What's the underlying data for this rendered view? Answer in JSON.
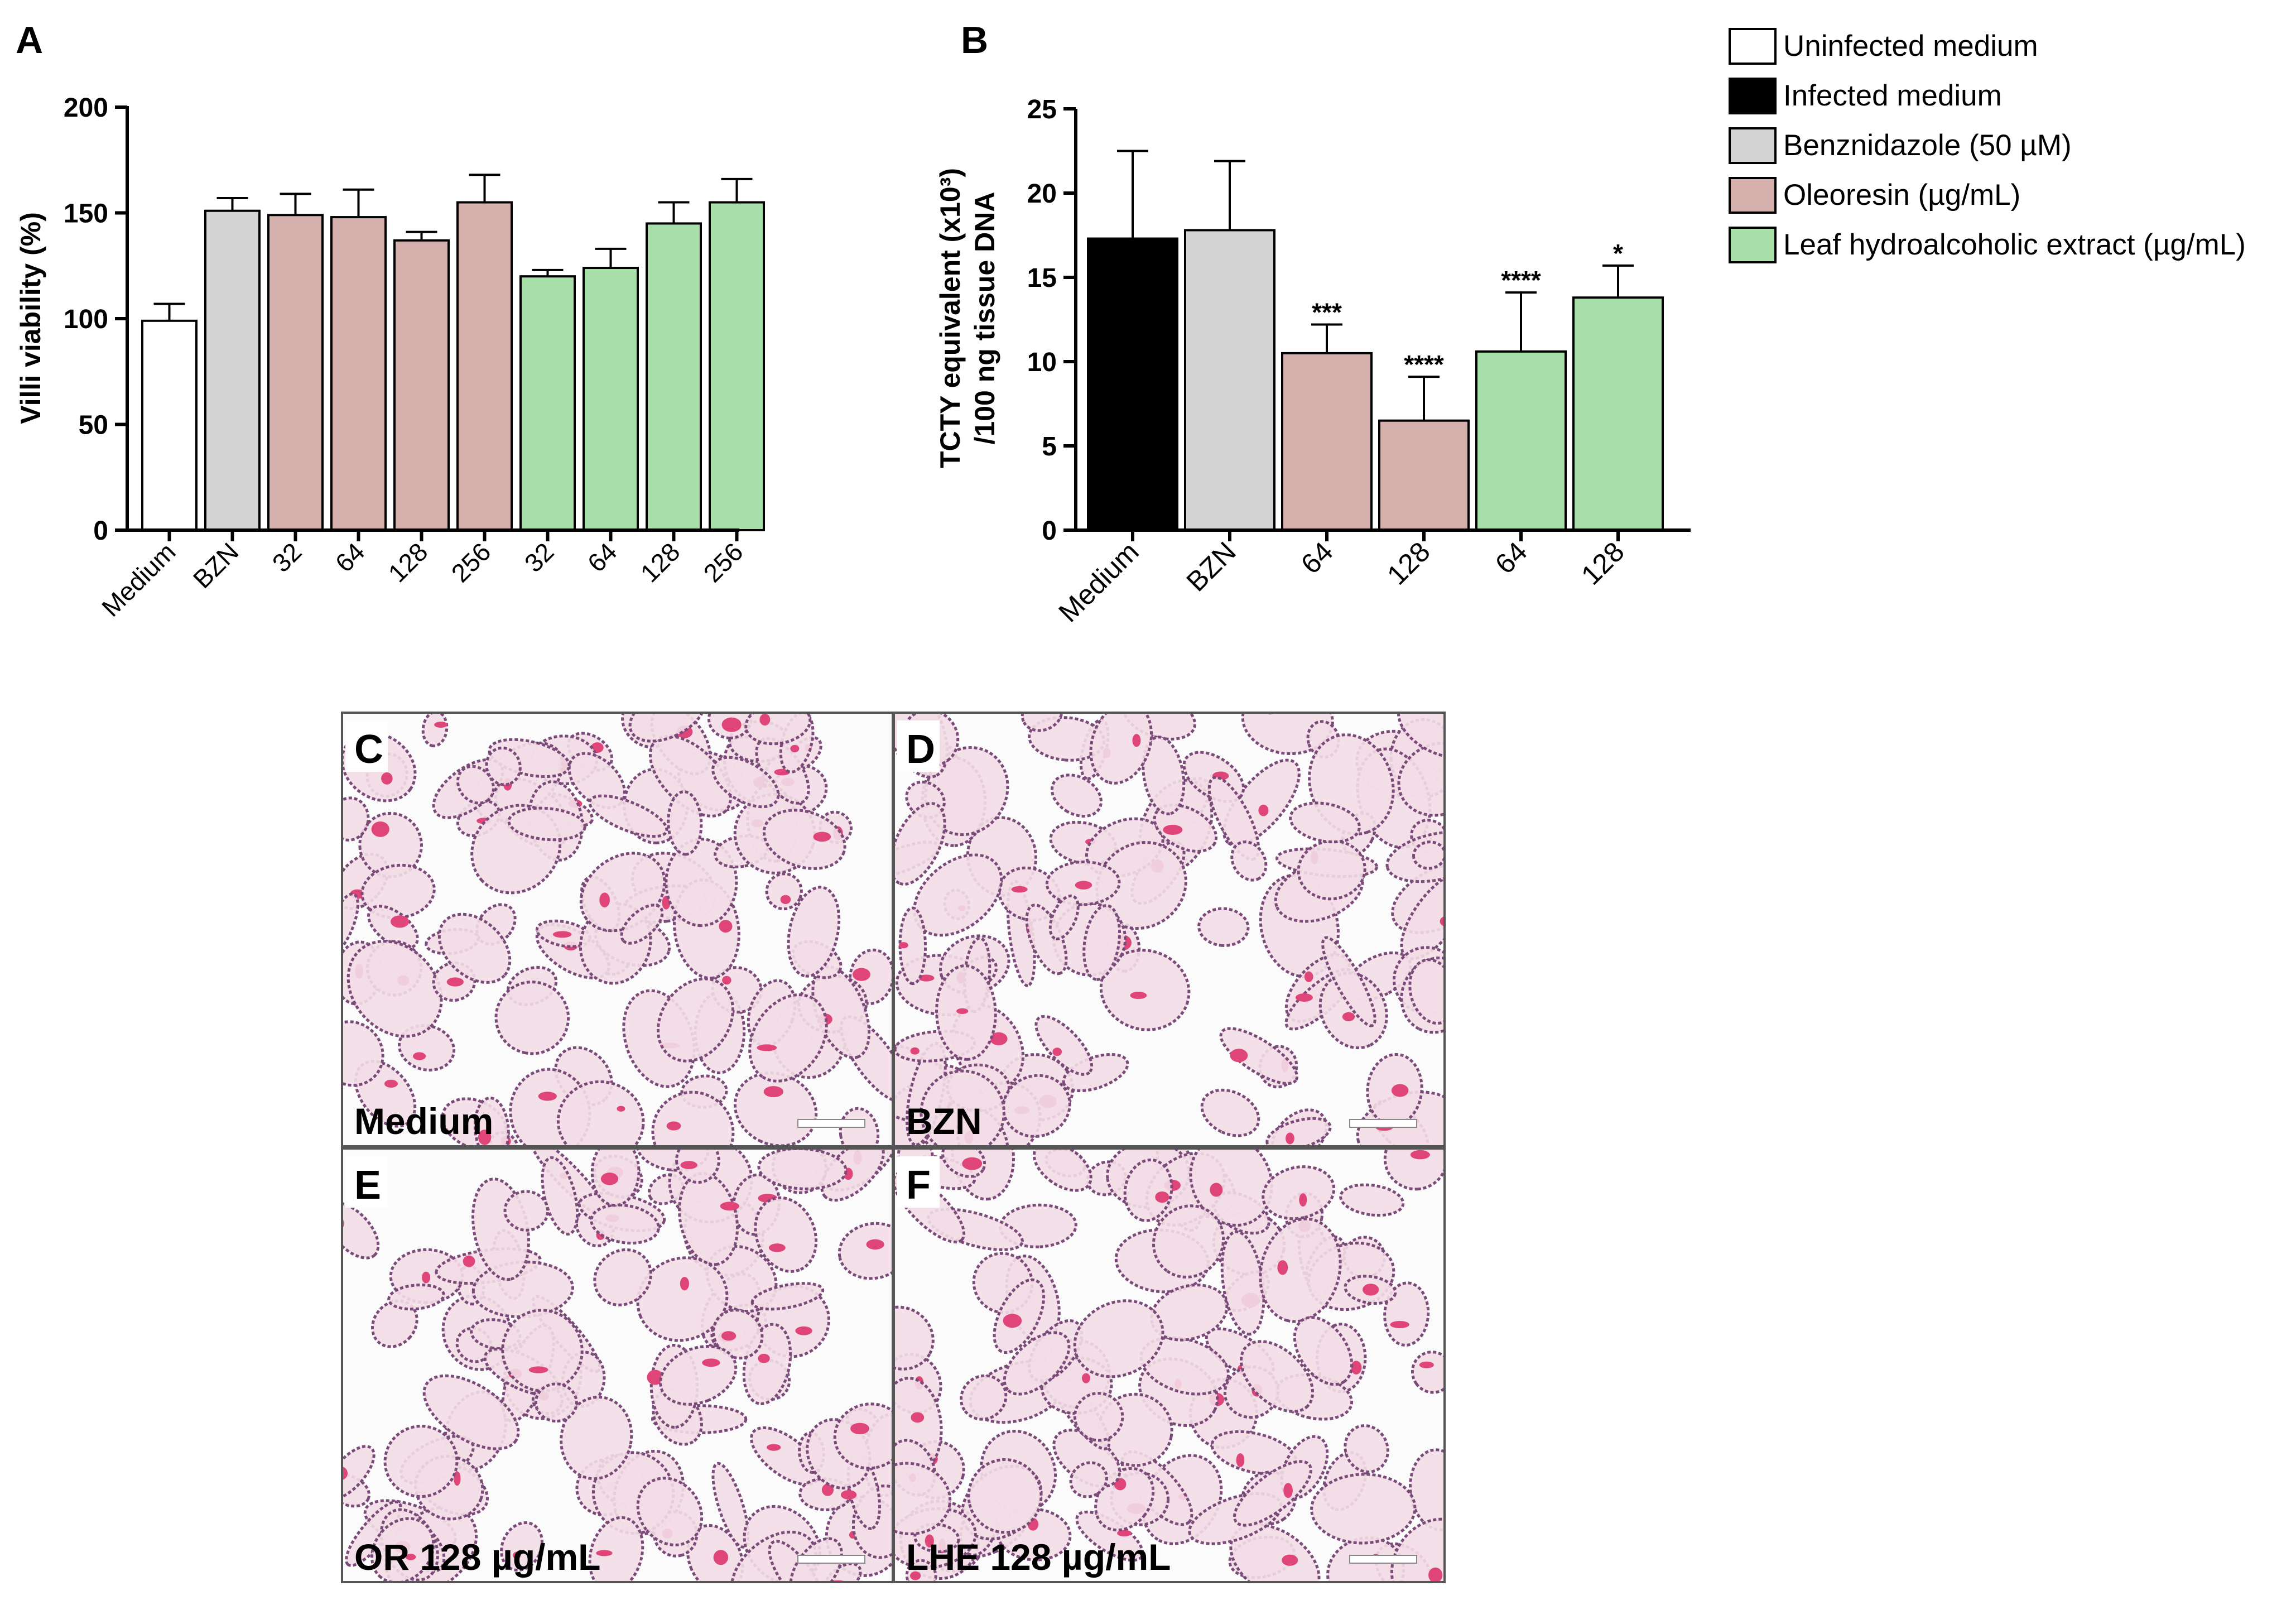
{
  "panel_labels": {
    "a": "A",
    "b": "B"
  },
  "legend": [
    {
      "label": "Uninfected medium",
      "color": "#ffffff"
    },
    {
      "label": "Infected medium",
      "color": "#000000"
    },
    {
      "label": "Benznidazole (50 µM)",
      "color": "#d3d3d3"
    },
    {
      "label": "Oleoresin (µg/mL)",
      "color": "#d6b0ad"
    },
    {
      "label": "Leaf hydroalcoholic extract (µg/mL)",
      "color": "#a8dea8"
    }
  ],
  "chart_data": [
    {
      "panel": "A",
      "type": "bar",
      "title": "",
      "xlabel": "",
      "ylabel": "Villi viability (%)",
      "ylim": [
        0,
        200
      ],
      "yticks": [
        0,
        50,
        100,
        150,
        200
      ],
      "grid": false,
      "categories": [
        "Medium",
        "BZN",
        "32",
        "64",
        "128",
        "256",
        "32",
        "64",
        "128",
        "256"
      ],
      "values": [
        99,
        151,
        149,
        148,
        137,
        155,
        120,
        124,
        145,
        155
      ],
      "errors": [
        8,
        6,
        10,
        13,
        4,
        13,
        3,
        9,
        10,
        11
      ],
      "groups": [
        "Uninfected medium",
        "Benznidazole (50 µM)",
        "Oleoresin (µg/mL)",
        "Oleoresin (µg/mL)",
        "Oleoresin (µg/mL)",
        "Oleoresin (µg/mL)",
        "Leaf hydroalcoholic extract (µg/mL)",
        "Leaf hydroalcoholic extract (µg/mL)",
        "Leaf hydroalcoholic extract (µg/mL)",
        "Leaf hydroalcoholic extract (µg/mL)"
      ],
      "colors": [
        "#ffffff",
        "#d3d3d3",
        "#d6b0ad",
        "#d6b0ad",
        "#d6b0ad",
        "#d6b0ad",
        "#a8dea8",
        "#a8dea8",
        "#a8dea8",
        "#a8dea8"
      ],
      "annotations": [
        "",
        "",
        "",
        "",
        "",
        "",
        "",
        "",
        "",
        ""
      ]
    },
    {
      "panel": "B",
      "type": "bar",
      "title": "",
      "xlabel": "",
      "ylabel_line1": "TCTY equivalent (x10³)",
      "ylabel_line2": "/100 ng tissue DNA",
      "ylim": [
        0,
        25
      ],
      "yticks": [
        0,
        5,
        10,
        15,
        20,
        25
      ],
      "grid": false,
      "categories": [
        "Medium",
        "BZN",
        "64",
        "128",
        "64",
        "128"
      ],
      "values": [
        17.3,
        17.8,
        10.5,
        6.5,
        10.6,
        13.8
      ],
      "errors": [
        5.2,
        4.1,
        1.7,
        2.6,
        3.5,
        1.9
      ],
      "groups": [
        "Infected medium",
        "Benznidazole (50 µM)",
        "Oleoresin (µg/mL)",
        "Oleoresin (µg/mL)",
        "Leaf hydroalcoholic extract (µg/mL)",
        "Leaf hydroalcoholic extract (µg/mL)"
      ],
      "colors": [
        "#000000",
        "#d3d3d3",
        "#d6b0ad",
        "#d6b0ad",
        "#a8dea8",
        "#a8dea8"
      ],
      "annotations": [
        "",
        "",
        "***",
        "****",
        "****",
        "*"
      ]
    }
  ],
  "micrographs": [
    {
      "letter": "C",
      "caption": "Medium",
      "tissue": "#f3dde6"
    },
    {
      "letter": "D",
      "caption": "BZN",
      "tissue": "#f3dde6"
    },
    {
      "letter": "E",
      "caption": "OR 128 µg/mL",
      "tissue": "#f3dde6"
    },
    {
      "letter": "F",
      "caption": "LHE 128 µg/mL",
      "tissue": "#f3dde6"
    }
  ]
}
